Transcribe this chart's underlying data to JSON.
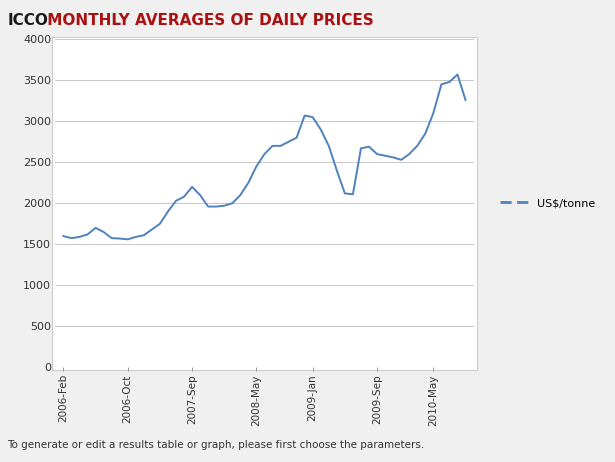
{
  "title_part1": "ICCO",
  "title_part2": " MONTHLY AVERAGES OF DAILY PRICES",
  "title_color1": "#1a1a1a",
  "title_color2": "#aa1111",
  "line_color": "#4f81bd",
  "legend_label": "US$/tonne",
  "ylim": [
    0,
    4000
  ],
  "yticks": [
    0,
    500,
    1000,
    1500,
    2000,
    2500,
    3000,
    3500,
    4000
  ],
  "plot_bg_color": "#ffffff",
  "footer_text": "To generate or edit a results table or graph, please first choose the parameters.",
  "xtick_labels": [
    "2006-Feb",
    "2006-Oct",
    "2007-Sep",
    "2008-May",
    "2009-Jan",
    "2009-Sep",
    "2010-May"
  ],
  "xtick_positions": [
    0,
    8,
    16,
    24,
    31,
    39,
    46
  ],
  "x_values": [
    0,
    1,
    2,
    3,
    4,
    5,
    6,
    7,
    8,
    9,
    10,
    11,
    12,
    13,
    14,
    15,
    16,
    17,
    18,
    19,
    20,
    21,
    22,
    23,
    24,
    25,
    26,
    27,
    28,
    29,
    30,
    31,
    32,
    33,
    34,
    35,
    36,
    37,
    38,
    39,
    40,
    41,
    42,
    43,
    44,
    45,
    46,
    47,
    48,
    49,
    50
  ],
  "y_values": [
    1600,
    1575,
    1590,
    1620,
    1700,
    1650,
    1575,
    1570,
    1560,
    1590,
    1610,
    1680,
    1750,
    1900,
    2030,
    2080,
    2200,
    2100,
    1960,
    1960,
    1970,
    2000,
    2100,
    2250,
    2450,
    2600,
    2700,
    2700,
    2750,
    2800,
    3070,
    3050,
    2900,
    2700,
    2400,
    2120,
    2110,
    2670,
    2690,
    2600,
    2580,
    2560,
    2530,
    2600,
    2700,
    2850,
    3100,
    3450,
    3480,
    3570,
    3260
  ],
  "outer_bg": "#f0f0f0",
  "header_bg": "#dcdcdc",
  "grid_color": "#b0b0b0",
  "border_color": "#888888",
  "chart_border_color": "#cccccc"
}
